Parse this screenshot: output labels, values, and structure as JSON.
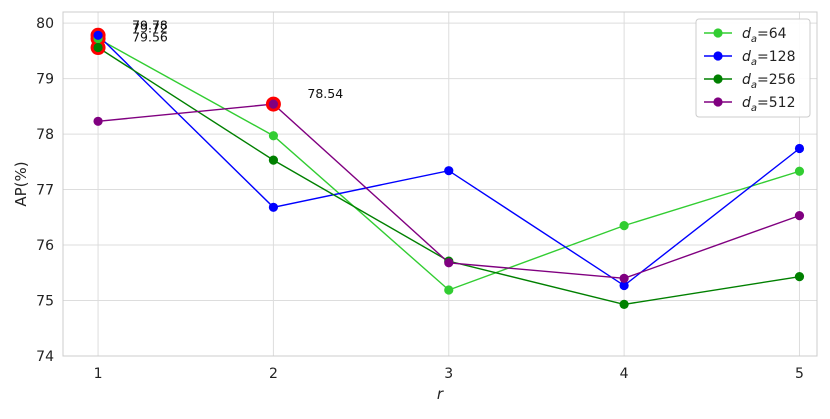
{
  "chart_data": {
    "type": "line",
    "title": "",
    "xlabel": "r",
    "ylabel": "AP(%)",
    "x": [
      1,
      2,
      3,
      4,
      5
    ],
    "xlim": [
      0.8,
      5.1
    ],
    "ylim": [
      74,
      80.2
    ],
    "xticks": [
      1,
      2,
      3,
      4,
      5
    ],
    "yticks": [
      74,
      75,
      76,
      77,
      78,
      79,
      80
    ],
    "grid": true,
    "legend_position": "top-right",
    "series": [
      {
        "name": "d_a=64",
        "legend_base": "d",
        "legend_sub": "a",
        "legend_value": "=64",
        "color": "#32cd32",
        "values": [
          79.72,
          77.97,
          75.19,
          76.35,
          77.33
        ]
      },
      {
        "name": "d_a=128",
        "legend_base": "d",
        "legend_sub": "a",
        "legend_value": "=128",
        "color": "#0000ff",
        "values": [
          79.78,
          76.68,
          77.34,
          75.27,
          77.74
        ]
      },
      {
        "name": "d_a=256",
        "legend_base": "d",
        "legend_sub": "a",
        "legend_value": "=256",
        "color": "#008000",
        "values": [
          79.56,
          77.53,
          75.71,
          74.93,
          75.43
        ]
      },
      {
        "name": "d_a=512",
        "legend_base": "d",
        "legend_sub": "a",
        "legend_value": "=512",
        "color": "#800080",
        "values": [
          78.23,
          78.54,
          75.68,
          75.4,
          76.53
        ]
      }
    ],
    "highlights": [
      {
        "series": 1,
        "index": 0
      },
      {
        "series": 0,
        "index": 0
      },
      {
        "series": 2,
        "index": 0
      },
      {
        "series": 3,
        "index": 1
      }
    ],
    "highlight_color": "#ff0000",
    "annotations": [
      {
        "text": "79.78",
        "x": 1,
        "y": 79.78
      },
      {
        "text": "79.72",
        "x": 1,
        "y": 79.72
      },
      {
        "text": "79.56",
        "x": 1,
        "y": 79.56
      },
      {
        "text": "78.54",
        "x": 2,
        "y": 78.54
      }
    ]
  }
}
